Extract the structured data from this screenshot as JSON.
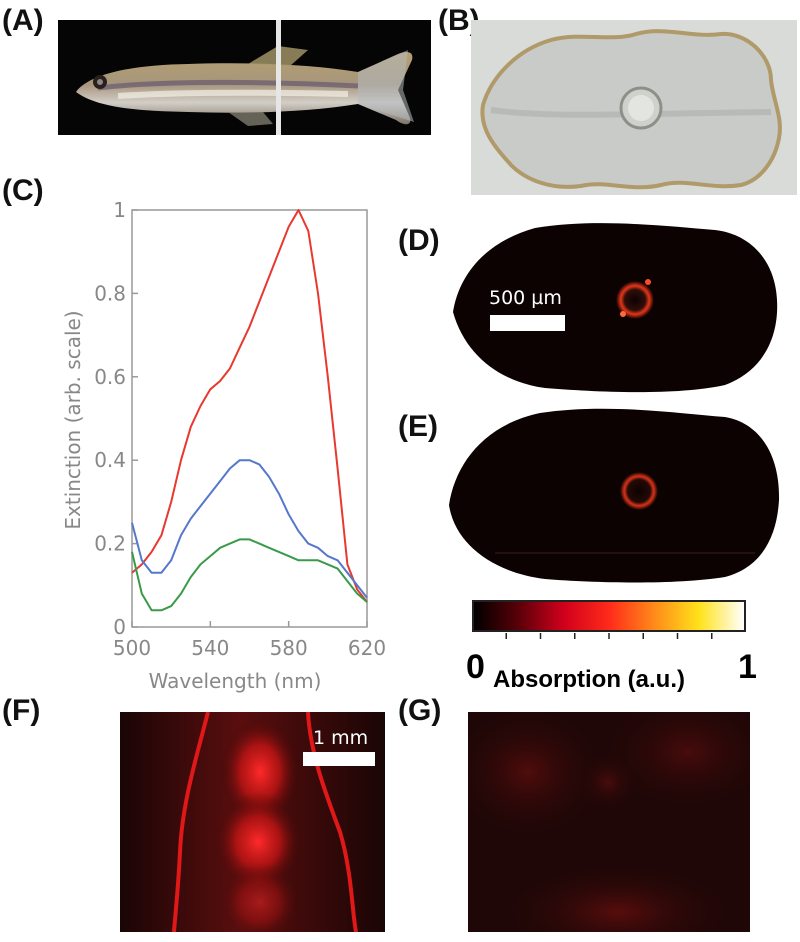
{
  "panel_labels": {
    "a": "(A)",
    "b": "(B)",
    "c": "(C)",
    "d": "(D)",
    "e": "(E)",
    "f": "(F)",
    "g": "(G)"
  },
  "scale_bars": {
    "d": "500 µm",
    "f": "1 mm"
  },
  "colorbar": {
    "min": "0",
    "max": "1",
    "label": "Absorption (a.u.)",
    "stops": [
      "#000000",
      "#5a0008",
      "#d1001c",
      "#ff2a1a",
      "#ff8a1a",
      "#ffe21a",
      "#ffffff"
    ]
  },
  "colors": {
    "red": "#e8382f",
    "blue": "#5577cc",
    "green": "#3a9a4a",
    "axis": "#999999"
  },
  "chart_data": {
    "type": "line",
    "xlabel": "Wavelength (nm)",
    "ylabel": "Extinction (arb. scale)",
    "xlim": [
      500,
      620
    ],
    "ylim": [
      0,
      1
    ],
    "xticks": [
      "500",
      "540",
      "580",
      "620"
    ],
    "yticks": [
      "0",
      "0.2",
      "0.4",
      "0.6",
      "0.8",
      "1"
    ],
    "grid": false,
    "series": [
      {
        "color": "#e8382f",
        "x": [
          500,
          505,
          510,
          515,
          520,
          525,
          530,
          535,
          540,
          545,
          550,
          555,
          560,
          565,
          570,
          575,
          580,
          585,
          590,
          595,
          600,
          605,
          610,
          615,
          620
        ],
        "y": [
          0.13,
          0.15,
          0.18,
          0.22,
          0.3,
          0.4,
          0.48,
          0.53,
          0.57,
          0.59,
          0.62,
          0.67,
          0.72,
          0.78,
          0.84,
          0.9,
          0.96,
          1.0,
          0.95,
          0.8,
          0.6,
          0.38,
          0.15,
          0.09,
          0.06
        ]
      },
      {
        "color": "#5577cc",
        "x": [
          500,
          505,
          510,
          515,
          520,
          525,
          530,
          535,
          540,
          545,
          550,
          555,
          560,
          565,
          570,
          575,
          580,
          585,
          590,
          595,
          600,
          605,
          610,
          615,
          620
        ],
        "y": [
          0.25,
          0.16,
          0.13,
          0.13,
          0.16,
          0.22,
          0.26,
          0.29,
          0.32,
          0.35,
          0.38,
          0.4,
          0.4,
          0.39,
          0.36,
          0.32,
          0.27,
          0.23,
          0.2,
          0.19,
          0.17,
          0.16,
          0.13,
          0.1,
          0.07
        ]
      },
      {
        "color": "#3a9a4a",
        "x": [
          500,
          505,
          510,
          515,
          520,
          525,
          530,
          535,
          540,
          545,
          550,
          555,
          560,
          565,
          570,
          575,
          580,
          585,
          590,
          595,
          600,
          605,
          610,
          615,
          620
        ],
        "y": [
          0.18,
          0.08,
          0.04,
          0.04,
          0.05,
          0.08,
          0.12,
          0.15,
          0.17,
          0.19,
          0.2,
          0.21,
          0.21,
          0.2,
          0.19,
          0.18,
          0.17,
          0.16,
          0.16,
          0.16,
          0.15,
          0.14,
          0.11,
          0.08,
          0.06
        ]
      }
    ]
  }
}
